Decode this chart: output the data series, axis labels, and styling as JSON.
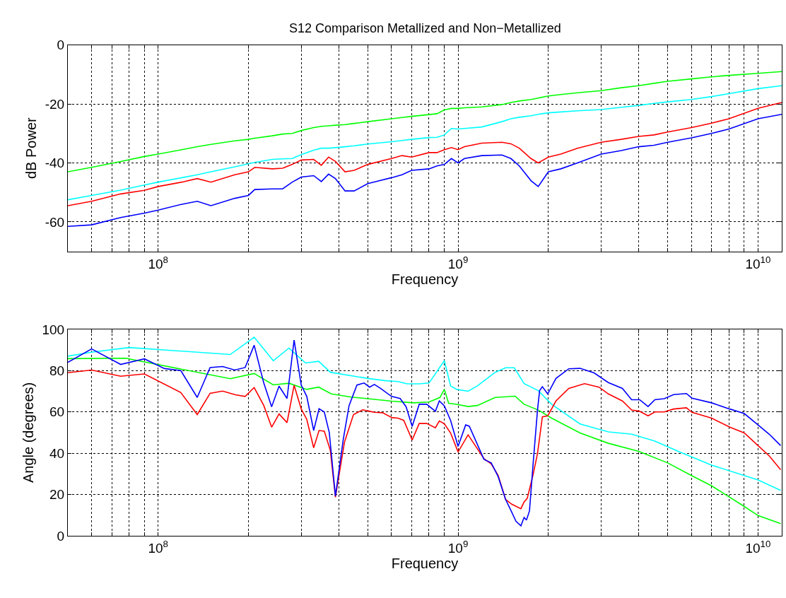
{
  "chart_data": [
    {
      "type": "line",
      "title": "S12 Comparison Metallized and Non−Metallized",
      "xlabel": "Frequency",
      "ylabel": "dB Power",
      "log": "x",
      "grid": true,
      "marker": "none",
      "xlim": [
        50000000,
        12000000000
      ],
      "xticks": [
        {
          "value": 50000000,
          "label": null
        },
        {
          "value": 60000000,
          "label": null
        },
        {
          "value": 70000000,
          "label": null
        },
        {
          "value": 80000000,
          "label": null
        },
        {
          "value": 90000000,
          "label": null
        },
        {
          "value": 100000000,
          "label": "10$^{8}$"
        },
        {
          "value": 200000000,
          "label": null
        },
        {
          "value": 300000000,
          "label": null
        },
        {
          "value": 400000000,
          "label": null
        },
        {
          "value": 500000000,
          "label": null
        },
        {
          "value": 600000000,
          "label": null
        },
        {
          "value": 700000000,
          "label": null
        },
        {
          "value": 800000000,
          "label": null
        },
        {
          "value": 900000000,
          "label": null
        },
        {
          "value": 1000000000,
          "label": "10$^{9}$"
        },
        {
          "value": 2000000000,
          "label": null
        },
        {
          "value": 3000000000,
          "label": null
        },
        {
          "value": 4000000000,
          "label": null
        },
        {
          "value": 5000000000,
          "label": null
        },
        {
          "value": 6000000000,
          "label": null
        },
        {
          "value": 7000000000,
          "label": null
        },
        {
          "value": 8000000000,
          "label": null
        },
        {
          "value": 9000000000,
          "label": null
        },
        {
          "value": 10000000000,
          "label": "10$^{10}$"
        }
      ],
      "ylim": [
        -70,
        0
      ],
      "yticks": [
        -60,
        -40,
        -20,
        0
      ],
      "x": [
        50000000.0,
        60000000.0,
        75000000.0,
        90000000.0,
        100000000.0,
        120000000.0,
        135000000.0,
        150000000.0,
        180000000.0,
        200000000.0,
        210000000.0,
        240000000.0,
        260000000.0,
        280000000.0,
        300000000.0,
        330000000.0,
        350000000.0,
        370000000.0,
        390000000.0,
        420000000.0,
        450000000.0,
        500000000.0,
        600000000.0,
        650000000.0,
        700000000.0,
        800000000.0,
        850000000.0,
        900000000.0,
        950000000.0,
        1000000000.0,
        1050000000.0,
        1200000000.0,
        1400000000.0,
        1500000000.0,
        1600000000.0,
        1750000000.0,
        1850000000.0,
        2000000000.0,
        2200000000.0,
        2500000000.0,
        3000000000.0,
        3500000000.0,
        4000000000.0,
        4500000000.0,
        5000000000.0,
        6000000000.0,
        7000000000.0,
        8000000000.0,
        10000000000.0,
        12000000000.0
      ],
      "series": [
        {
          "color": "#00ff00",
          "values": [
            -43,
            -41.5,
            -39.5,
            -37.8,
            -37,
            -35.5,
            -34.5,
            -33.7,
            -32.5,
            -32,
            -31.6,
            -30.8,
            -30.2,
            -30,
            -29,
            -28,
            -27.6,
            -27.4,
            -27.2,
            -27,
            -26.6,
            -26,
            -25,
            -24.6,
            -24.2,
            -23.6,
            -23.3,
            -22,
            -21.5,
            -21.5,
            -21.3,
            -21,
            -20.2,
            -19.5,
            -19,
            -18.5,
            -18,
            -17.3,
            -16.8,
            -16.2,
            -15.5,
            -14.5,
            -13.8,
            -13,
            -12.3,
            -11.5,
            -10.8,
            -10.3,
            -9.6,
            -9
          ]
        },
        {
          "color": "#00ffff",
          "values": [
            -52.5,
            -51,
            -49.2,
            -47.5,
            -46.5,
            -45,
            -44,
            -43,
            -41.3,
            -40.3,
            -39.8,
            -38.8,
            -38.6,
            -38.5,
            -37.2,
            -35.7,
            -35,
            -35,
            -34.8,
            -34.5,
            -34.2,
            -33.6,
            -32.8,
            -32.4,
            -32,
            -31.4,
            -31.3,
            -30.5,
            -28.3,
            -28.5,
            -28.3,
            -27.8,
            -26,
            -25,
            -24.5,
            -24,
            -23.5,
            -23,
            -22.7,
            -22.3,
            -21.9,
            -21.1,
            -20.5,
            -19.8,
            -19.3,
            -18.5,
            -17.5,
            -16.5,
            -14.8,
            -13.8
          ]
        },
        {
          "color": "#ff0000",
          "values": [
            -54.5,
            -53,
            -50.5,
            -49.3,
            -48,
            -46.5,
            -45.3,
            -46.5,
            -44,
            -43,
            -41.5,
            -42,
            -41.8,
            -40.5,
            -39,
            -38.8,
            -40.8,
            -38,
            -39.5,
            -43,
            -42.5,
            -40.5,
            -38.5,
            -37.5,
            -38,
            -36.5,
            -36.5,
            -35.5,
            -34.8,
            -35.5,
            -34.5,
            -33.3,
            -33,
            -33.5,
            -35,
            -38.5,
            -40,
            -38,
            -37,
            -35,
            -33,
            -32,
            -31,
            -30.5,
            -29.5,
            -28,
            -26.5,
            -25,
            -21.5,
            -19.5
          ]
        },
        {
          "color": "#0000ff",
          "values": [
            -61.5,
            -61,
            -58.5,
            -57,
            -56,
            -54,
            -53,
            -54.5,
            -52,
            -51,
            -49,
            -48.8,
            -48.8,
            -46.5,
            -44.8,
            -44.3,
            -46.3,
            -43.8,
            -45.3,
            -49.5,
            -49.5,
            -47,
            -45,
            -44,
            -42.5,
            -42,
            -41,
            -40.5,
            -38.5,
            -40,
            -38.5,
            -37.5,
            -37.3,
            -38.5,
            -41,
            -46,
            -48,
            -43,
            -42,
            -40,
            -37,
            -35.8,
            -34.5,
            -34,
            -33,
            -31.5,
            -30,
            -28.5,
            -25,
            -23.5
          ]
        }
      ]
    },
    {
      "type": "line",
      "xlabel": "Frequency",
      "ylabel": "Angle (degrees)",
      "log": "x",
      "grid": true,
      "marker": "none",
      "xlim": [
        50000000,
        12000000000
      ],
      "xticks": [
        {
          "value": 50000000,
          "label": null
        },
        {
          "value": 60000000,
          "label": null
        },
        {
          "value": 70000000,
          "label": null
        },
        {
          "value": 80000000,
          "label": null
        },
        {
          "value": 90000000,
          "label": null
        },
        {
          "value": 100000000,
          "label": "10$^{8}$"
        },
        {
          "value": 200000000,
          "label": null
        },
        {
          "value": 300000000,
          "label": null
        },
        {
          "value": 400000000,
          "label": null
        },
        {
          "value": 500000000,
          "label": null
        },
        {
          "value": 600000000,
          "label": null
        },
        {
          "value": 700000000,
          "label": null
        },
        {
          "value": 800000000,
          "label": null
        },
        {
          "value": 900000000,
          "label": null
        },
        {
          "value": 1000000000,
          "label": "10$^{9}$"
        },
        {
          "value": 2000000000,
          "label": null
        },
        {
          "value": 3000000000,
          "label": null
        },
        {
          "value": 4000000000,
          "label": null
        },
        {
          "value": 5000000000,
          "label": null
        },
        {
          "value": 6000000000,
          "label": null
        },
        {
          "value": 7000000000,
          "label": null
        },
        {
          "value": 8000000000,
          "label": null
        },
        {
          "value": 9000000000,
          "label": null
        },
        {
          "value": 10000000000,
          "label": "10$^{10}$"
        }
      ],
      "ylim": [
        0,
        100
      ],
      "yticks": [
        0,
        20,
        40,
        60,
        80,
        100
      ],
      "series": [
        {
          "color": "#00ffff",
          "x": [
            50000000.0,
            60000000.0,
            80000000.0,
            174000000.0,
            209000000.0,
            242000000.0,
            273000000.0,
            310000000.0,
            343000000.0,
            375000000.0,
            500000000.0,
            575000000.0,
            630000000.0,
            676000000.0,
            742000000.0,
            800000000.0,
            900000000.0,
            944000000.0,
            990000000.0,
            1080000000.0,
            1160000000.0,
            1330000000.0,
            1440000000.0,
            1540000000.0,
            1660000000.0,
            1850000000.0,
            2050000000.0,
            2550000000.0,
            3170000000.0,
            3790000000.0,
            4530000000.0,
            5420000000.0,
            7000000000.0,
            9000000000.0,
            10000000000.0,
            11900000000.0
          ],
          "values": [
            87,
            88.9,
            91.2,
            87.8,
            96.2,
            84.8,
            90.9,
            83.7,
            84.5,
            79.2,
            76.2,
            75.1,
            74.7,
            73.6,
            73.6,
            74,
            84.8,
            72.6,
            70.9,
            70,
            72.6,
            79.2,
            81.4,
            81.4,
            73.7,
            70.3,
            63.7,
            54.2,
            50.3,
            49.2,
            45.9,
            40.9,
            34.2,
            29.2,
            27,
            22
          ]
        },
        {
          "color": "#00ff00",
          "x": [
            50000000.0,
            78000000.0,
            90000000.0,
            174000000.0,
            209000000.0,
            242000000.0,
            273000000.0,
            313000000.0,
            343000000.0,
            378000000.0,
            440000000.0,
            500000000.0,
            600000000.0,
            710000000.0,
            800000000.0,
            870000000.0,
            900000000.0,
            930000000.0,
            990000000.0,
            1080000000.0,
            1160000000.0,
            1330000000.0,
            1550000000.0,
            1660000000.0,
            1850000000.0,
            2050000000.0,
            2550000000.0,
            3170000000.0,
            4000000000.0,
            5000000000.0,
            6000000000.0,
            7000000000.0,
            9000000000.0,
            10000000000.0,
            11900000000.0
          ],
          "values": [
            85.8,
            86,
            84.2,
            76.1,
            78.6,
            73.1,
            73.9,
            70.9,
            72,
            68.7,
            67.2,
            66.4,
            65.2,
            64.4,
            64.8,
            67,
            70.9,
            64.2,
            63.7,
            62.6,
            63.1,
            67,
            67.6,
            63.7,
            60.9,
            57,
            49.8,
            44.8,
            40.9,
            35.3,
            29.2,
            24.2,
            14.2,
            9.8,
            5.9
          ]
        },
        {
          "color": "#ff0000",
          "x": [
            50000000.0,
            60000000.0,
            75000000.0,
            90000000.0,
            119000000.0,
            135000000.0,
            149000000.0,
            164000000.0,
            181000000.0,
            195000000.0,
            209000000.0,
            225000000.0,
            239000000.0,
            253000000.0,
            269000000.0,
            284000000.0,
            300000000.0,
            313000000.0,
            330000000.0,
            344000000.0,
            358000000.0,
            375000000.0,
            390000000.0,
            418000000.0,
            448000000.0,
            481000000.0,
            507000000.0,
            526000000.0,
            560000000.0,
            602000000.0,
            630000000.0,
            659000000.0,
            703000000.0,
            742000000.0,
            786000000.0,
            840000000.0,
            866000000.0,
            900000000.0,
            944000000.0,
            1000000000.0,
            1080000000.0,
            1220000000.0,
            1290000000.0,
            1360000000.0,
            1440000000.0,
            1510000000.0,
            1620000000.0,
            1660000000.0,
            1700000000.0,
            1780000000.0,
            1840000000.0,
            1910000000.0,
            1990000000.0,
            2120000000.0,
            2340000000.0,
            2640000000.0,
            2950000000.0,
            3170000000.0,
            3530000000.0,
            3790000000.0,
            4030000000.0,
            4300000000.0,
            4530000000.0,
            4870000000.0,
            5230000000.0,
            5770000000.0,
            6020000000.0,
            7000000000.0,
            8050000000.0,
            9000000000.0,
            10000000000.0,
            10900000000.0,
            11900000000.0
          ],
          "values": [
            79,
            80.3,
            77.3,
            78.4,
            69.4,
            58.7,
            69,
            70.1,
            68.3,
            67.5,
            71.8,
            63.1,
            52.6,
            59,
            54.8,
            72.9,
            61.4,
            56.4,
            42.6,
            51,
            50.7,
            41.4,
            18.7,
            45.3,
            58.7,
            61,
            60.3,
            59.8,
            59.6,
            57.2,
            57,
            55.9,
            46.4,
            54.4,
            54.4,
            52.3,
            55.6,
            54.2,
            49.8,
            40.6,
            48.9,
            37.3,
            34.8,
            29.2,
            17.6,
            15.3,
            13.1,
            16.4,
            18.1,
            29.8,
            39.8,
            57.6,
            58.1,
            65.3,
            71.4,
            73.7,
            72,
            68.7,
            65.3,
            60.9,
            60.3,
            58.1,
            60,
            60,
            61.4,
            62,
            59.8,
            57,
            52.6,
            49.8,
            43.7,
            38.7,
            32
          ]
        },
        {
          "color": "#0000ff",
          "x": [
            50000000.0,
            60000000.0,
            75000000.0,
            90000000.0,
            105000000.0,
            119000000.0,
            135000000.0,
            149000000.0,
            164000000.0,
            180000000.0,
            195000000.0,
            209000000.0,
            225000000.0,
            239000000.0,
            253000000.0,
            269000000.0,
            284000000.0,
            300000000.0,
            313000000.0,
            330000000.0,
            344000000.0,
            358000000.0,
            372000000.0,
            390000000.0,
            414000000.0,
            433000000.0,
            460000000.0,
            486000000.0,
            507000000.0,
            526000000.0,
            550000000.0,
            600000000.0,
            641000000.0,
            671000000.0,
            703000000.0,
            742000000.0,
            786000000.0,
            840000000.0,
            866000000.0,
            900000000.0,
            944000000.0,
            1000000000.0,
            1060000000.0,
            1090000000.0,
            1220000000.0,
            1290000000.0,
            1360000000.0,
            1440000000.0,
            1510000000.0,
            1560000000.0,
            1620000000.0,
            1660000000.0,
            1690000000.0,
            1730000000.0,
            1780000000.0,
            1840000000.0,
            1870000000.0,
            1910000000.0,
            1990000000.0,
            2120000000.0,
            2340000000.0,
            2550000000.0,
            2840000000.0,
            3170000000.0,
            3530000000.0,
            3790000000.0,
            4030000000.0,
            4300000000.0,
            4530000000.0,
            4870000000.0,
            5230000000.0,
            5770000000.0,
            6020000000.0,
            7000000000.0,
            8050000000.0,
            9000000000.0,
            10000000000.0,
            10900000000.0,
            11900000000.0
          ],
          "values": [
            84,
            90.5,
            83,
            85.7,
            81,
            80,
            67,
            81.5,
            82,
            80.3,
            81.5,
            92.3,
            74,
            62.5,
            72.5,
            66.5,
            94.8,
            73,
            67.5,
            51,
            61.5,
            60,
            50,
            19.2,
            46.5,
            63,
            73,
            74,
            72,
            73.3,
            71.5,
            67.5,
            66.5,
            62.5,
            53,
            63.7,
            63.7,
            60.3,
            65.3,
            62.9,
            55.9,
            43.3,
            53.7,
            53.1,
            37,
            35.3,
            28.7,
            17.6,
            11.4,
            7,
            4.8,
            8.9,
            7.6,
            12,
            35.3,
            60.9,
            70.3,
            72.2,
            68.7,
            76.2,
            80.9,
            81.1,
            78.9,
            74.2,
            71.4,
            65.9,
            65.9,
            62.6,
            65.9,
            66.4,
            68.4,
            68.9,
            66.7,
            64.4,
            61.4,
            59.2,
            53.7,
            49.2,
            43.7
          ]
        }
      ]
    }
  ]
}
